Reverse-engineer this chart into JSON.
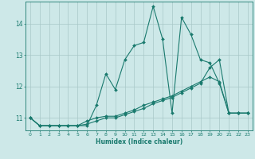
{
  "xlabel": "Humidex (Indice chaleur)",
  "bg_color": "#cde8e8",
  "line_color": "#1a7a6e",
  "grid_color": "#a8c8c8",
  "xlim": [
    -0.5,
    23.5
  ],
  "ylim": [
    10.6,
    14.7
  ],
  "yticks": [
    11,
    12,
    13,
    14
  ],
  "xticks": [
    0,
    1,
    2,
    3,
    4,
    5,
    6,
    7,
    8,
    9,
    10,
    11,
    12,
    13,
    14,
    15,
    16,
    17,
    18,
    19,
    20,
    21,
    22,
    23
  ],
  "series": [
    {
      "x": [
        0,
        1,
        2,
        3,
        4,
        5,
        6,
        7,
        8,
        9,
        10,
        11,
        12,
        13,
        14,
        15,
        16,
        17,
        18,
        19,
        20,
        21,
        22,
        23
      ],
      "y": [
        11.0,
        10.75,
        10.75,
        10.75,
        10.75,
        10.75,
        10.75,
        11.4,
        12.4,
        11.9,
        12.85,
        13.3,
        13.4,
        14.55,
        13.5,
        11.15,
        14.2,
        13.65,
        12.85,
        12.75,
        12.1,
        11.15,
        11.15,
        11.15
      ]
    },
    {
      "x": [
        0,
        1,
        2,
        3,
        4,
        5,
        6,
        7,
        8,
        9,
        10,
        11,
        12,
        13,
        14,
        15,
        16,
        17,
        18,
        19,
        20,
        21,
        22,
        23
      ],
      "y": [
        11.0,
        10.75,
        10.75,
        10.75,
        10.75,
        10.75,
        10.9,
        11.0,
        11.05,
        11.05,
        11.15,
        11.25,
        11.4,
        11.5,
        11.6,
        11.7,
        11.85,
        12.0,
        12.15,
        12.3,
        12.15,
        11.15,
        11.15,
        11.15
      ]
    },
    {
      "x": [
        0,
        1,
        2,
        3,
        4,
        5,
        6,
        7,
        8,
        9,
        10,
        11,
        12,
        13,
        14,
        15,
        16,
        17,
        18,
        19,
        20,
        21,
        22,
        23
      ],
      "y": [
        11.0,
        10.75,
        10.75,
        10.75,
        10.75,
        10.75,
        10.8,
        10.9,
        11.0,
        11.0,
        11.1,
        11.2,
        11.3,
        11.45,
        11.55,
        11.65,
        11.8,
        11.95,
        12.1,
        12.6,
        12.85,
        11.15,
        11.15,
        11.15
      ]
    }
  ]
}
